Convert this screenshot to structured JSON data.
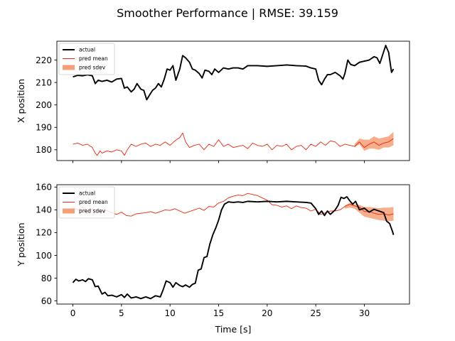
{
  "figure": {
    "title": "Smoother Performance | RMSE: 39.159",
    "xlabel": "Time [s]"
  },
  "colors": {
    "actual": "#000000",
    "pred_mean": "#e8280a",
    "pred_sdev": "#f5a079"
  },
  "chart_data": [
    {
      "type": "line",
      "ylabel": "X position",
      "xlim": [
        -1.65,
        34.65
      ],
      "ylim": [
        175.2,
        228.4
      ],
      "xticks": [
        0,
        5,
        10,
        15,
        20,
        25,
        30
      ],
      "xtick_labels_visible": false,
      "yticks": [
        180,
        190,
        200,
        210,
        220
      ],
      "ytick_labels": [
        "180",
        "190",
        "200",
        "210",
        "220"
      ],
      "legend": {
        "placement": "top-left",
        "entries": [
          "actual",
          "pred mean",
          "pred sdev"
        ]
      },
      "series": [
        {
          "name": "actual",
          "style": "line-thick",
          "x": [
            0,
            0.5,
            1,
            1.5,
            2,
            2.3,
            2.6,
            3,
            3.5,
            4,
            4.5,
            5,
            5.3,
            5.6,
            6,
            6.3,
            6.6,
            7,
            7.3,
            7.6,
            7.9,
            8.2,
            8.5,
            8.8,
            9.1,
            9.4,
            9.7,
            10,
            10.3,
            10.6,
            11,
            11.3,
            11.6,
            12,
            12.3,
            12.6,
            13,
            13.3,
            13.6,
            14,
            14.3,
            14.6,
            15,
            15.5,
            16,
            16.5,
            17,
            17.5,
            18,
            19,
            20,
            21,
            22,
            23,
            24,
            24.5,
            25,
            25.3,
            25.6,
            25.9,
            26.2,
            26.5,
            27,
            27.5,
            27.8,
            28,
            28.3,
            28.6,
            29,
            29.5,
            30,
            30.5,
            31,
            31.3,
            31.6,
            31.9,
            32.2,
            32.5,
            32.8,
            33
          ],
          "values": [
            212.5,
            213.2,
            213.0,
            213.4,
            213.0,
            209.5,
            211.0,
            210.5,
            211.0,
            210.2,
            211.5,
            211.8,
            207.5,
            208.0,
            205.8,
            207.0,
            209.5,
            207.0,
            206.5,
            202.3,
            204.5,
            206.5,
            207.5,
            209.5,
            208.0,
            211.5,
            216.0,
            215.5,
            217.5,
            211.0,
            216.0,
            222.0,
            221.0,
            219.0,
            216.0,
            215.5,
            214.0,
            212.0,
            215.5,
            215.0,
            213.5,
            216.0,
            214.5,
            216.5,
            216.0,
            216.5,
            216.5,
            216.0,
            217.5,
            217.5,
            217.2,
            217.5,
            217.8,
            217.5,
            217.3,
            216.5,
            216.0,
            211.0,
            209.0,
            211.5,
            213.5,
            213.5,
            214.5,
            213.0,
            211.5,
            214.0,
            220.0,
            218.0,
            217.5,
            219.0,
            219.5,
            220.0,
            221.5,
            221.0,
            218.5,
            222.5,
            226.5,
            223.5,
            214.5,
            216.0
          ]
        },
        {
          "name": "pred mean",
          "style": "line-thin",
          "x": [
            0,
            0.5,
            1,
            1.5,
            2,
            2.3,
            2.5,
            2.8,
            3,
            3.5,
            4,
            4.5,
            5,
            5.3,
            5.6,
            6,
            6.5,
            7,
            7.5,
            8,
            8.5,
            9,
            9.5,
            10,
            10.5,
            11,
            11.3,
            11.6,
            12,
            12.5,
            13,
            13.5,
            14,
            14.5,
            15,
            15.5,
            16,
            16.5,
            17,
            17.5,
            18,
            18.5,
            19,
            19.5,
            20,
            20.5,
            21,
            21.5,
            22,
            22.5,
            23,
            23.5,
            24,
            24.5,
            25,
            25.5,
            26,
            26.5,
            27,
            27.5,
            28,
            28.5,
            29,
            29.5,
            30,
            30.5,
            31,
            31.5,
            32,
            32.5,
            33
          ],
          "values": [
            182.5,
            183.0,
            182.0,
            182.5,
            181.0,
            178.5,
            177.5,
            179.5,
            178.5,
            179.5,
            179.0,
            180.0,
            179.5,
            177.5,
            180.0,
            182.5,
            181.5,
            182.5,
            183.0,
            181.5,
            182.5,
            182.0,
            183.5,
            182.0,
            184.0,
            185.5,
            187.5,
            183.5,
            181.0,
            182.0,
            182.5,
            180.0,
            182.5,
            181.5,
            184.5,
            181.5,
            182.5,
            181.0,
            181.5,
            182.0,
            180.5,
            183.0,
            182.0,
            181.5,
            182.5,
            180.0,
            182.0,
            181.5,
            182.5,
            180.0,
            181.5,
            182.0,
            180.0,
            182.5,
            181.5,
            183.5,
            182.0,
            184.0,
            183.5,
            181.5,
            182.5,
            182.0,
            181.5,
            183.5,
            181.0,
            182.5,
            183.5,
            182.0,
            183.0,
            183.5,
            185.0
          ]
        },
        {
          "name": "pred sdev",
          "style": "band",
          "x": [
            29.0,
            29.5,
            30,
            30.5,
            31,
            31.5,
            32,
            32.5,
            33
          ],
          "lower": [
            181.0,
            182.5,
            179.5,
            180.5,
            180.5,
            180.0,
            181.0,
            181.0,
            182.0
          ],
          "upper": [
            182.5,
            185.0,
            184.5,
            184.5,
            186.0,
            185.0,
            185.5,
            186.0,
            188.0
          ]
        }
      ]
    },
    {
      "type": "line",
      "ylabel": "Y position",
      "xlim": [
        -1.65,
        34.65
      ],
      "ylim": [
        57.2,
        162.1
      ],
      "xticks": [
        0,
        5,
        10,
        15,
        20,
        25,
        30
      ],
      "xtick_labels": [
        "0",
        "5",
        "10",
        "15",
        "20",
        "25",
        "30"
      ],
      "yticks": [
        60,
        80,
        100,
        120,
        140,
        160
      ],
      "ytick_labels": [
        "60",
        "80",
        "100",
        "120",
        "140",
        "160"
      ],
      "legend": {
        "placement": "top-left",
        "entries": [
          "actual",
          "pred mean",
          "pred sdev"
        ]
      },
      "series": [
        {
          "name": "actual",
          "style": "line-thick",
          "x": [
            0,
            0.3,
            0.6,
            1,
            1.3,
            1.6,
            2,
            2.3,
            2.6,
            3,
            3.3,
            3.6,
            4,
            4.5,
            5,
            5.3,
            5.6,
            6,
            6.5,
            7,
            7.5,
            8,
            8.5,
            9,
            9.3,
            9.6,
            10,
            10.3,
            10.6,
            11,
            11.3,
            11.6,
            12,
            12.3,
            12.6,
            12.9,
            13.2,
            13.5,
            13.8,
            14.1,
            14.4,
            14.7,
            15,
            15.3,
            15.6,
            16,
            16.5,
            17,
            17.5,
            18,
            19,
            20,
            21,
            22,
            23,
            24,
            24.5,
            25,
            25.3,
            25.6,
            25.9,
            26.2,
            26.5,
            27,
            27.3,
            27.6,
            27.9,
            28.2,
            28.5,
            28.8,
            29.1,
            29.5,
            30,
            30.5,
            31,
            31.5,
            32,
            32.3,
            32.6,
            32.9,
            33
          ],
          "values": [
            76.0,
            79.0,
            77.5,
            78.5,
            77.0,
            79.5,
            78.5,
            72.5,
            73.0,
            66.0,
            67.5,
            64.5,
            65.0,
            63.5,
            65.5,
            63.0,
            66.0,
            62.5,
            63.5,
            62.0,
            63.5,
            62.0,
            64.5,
            63.5,
            70.0,
            77.5,
            76.0,
            72.0,
            76.0,
            73.5,
            72.5,
            74.0,
            72.0,
            74.5,
            75.5,
            87.0,
            88.0,
            98.0,
            99.0,
            110.0,
            118.0,
            124.0,
            131.0,
            140.0,
            145.0,
            147.0,
            146.5,
            147.0,
            146.5,
            147.5,
            147.0,
            147.5,
            147.0,
            147.5,
            147.0,
            146.5,
            146.0,
            141.0,
            136.0,
            139.0,
            135.0,
            139.0,
            136.0,
            140.0,
            144.0,
            151.0,
            150.0,
            151.5,
            148.0,
            145.0,
            147.5,
            140.0,
            141.5,
            138.0,
            140.5,
            139.0,
            137.5,
            130.0,
            128.0,
            121.0,
            118.0
          ]
        },
        {
          "name": "pred mean",
          "style": "line-thin",
          "x": [
            0,
            0.5,
            1,
            1.5,
            2,
            2.5,
            3,
            3.5,
            4,
            4.5,
            5,
            5.5,
            6,
            6.5,
            7,
            7.5,
            8,
            8.5,
            9,
            9.5,
            10,
            10.5,
            11,
            11.5,
            12,
            12.5,
            13,
            13.5,
            14,
            14.5,
            15,
            15.5,
            16,
            16.5,
            17,
            17.5,
            18,
            18.5,
            19,
            19.5,
            20,
            20.5,
            21,
            21.5,
            22,
            22.5,
            23,
            23.5,
            24,
            24.5,
            25,
            25.5,
            26,
            26.5,
            27,
            27.5,
            28,
            28.5,
            29,
            29.5,
            30,
            30.5,
            31,
            31.5,
            32,
            32.5,
            33
          ],
          "values": [
            142.0,
            140.0,
            142.5,
            138.0,
            140.5,
            140.0,
            138.0,
            139.5,
            137.5,
            136.0,
            138.0,
            135.0,
            134.5,
            136.5,
            137.0,
            137.5,
            138.5,
            137.0,
            138.5,
            140.0,
            139.5,
            141.0,
            139.0,
            137.0,
            138.5,
            140.0,
            141.5,
            139.5,
            143.0,
            142.5,
            146.0,
            147.5,
            150.5,
            152.0,
            153.0,
            152.5,
            154.5,
            153.5,
            152.5,
            150.5,
            148.5,
            144.5,
            144.0,
            142.5,
            143.5,
            141.0,
            143.5,
            142.0,
            141.5,
            139.0,
            140.5,
            136.0,
            137.5,
            139.0,
            139.0,
            140.0,
            143.0,
            145.0,
            143.5,
            142.5,
            138.5,
            138.5,
            137.0,
            136.0,
            136.5,
            135.5,
            136.5
          ]
        },
        {
          "name": "pred sdev",
          "style": "band",
          "x": [
            28.0,
            28.5,
            29,
            29.5,
            30,
            30.5,
            31,
            31.5,
            32,
            32.5,
            33
          ],
          "lower": [
            141.0,
            142.0,
            141.0,
            137.5,
            134.0,
            133.0,
            132.0,
            131.0,
            130.5,
            130.0,
            130.5
          ],
          "upper": [
            144.0,
            146.0,
            145.0,
            144.5,
            142.5,
            142.5,
            142.0,
            141.5,
            142.0,
            142.0,
            142.5
          ]
        }
      ]
    }
  ]
}
